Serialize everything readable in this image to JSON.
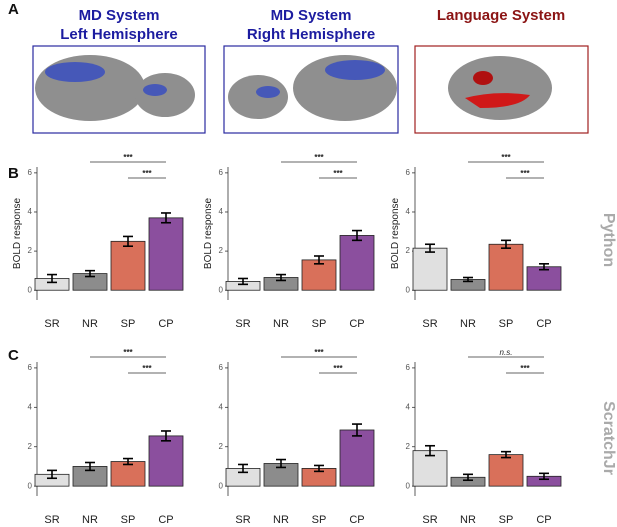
{
  "panel_labels": [
    "A",
    "B",
    "C"
  ],
  "brain_panels": [
    {
      "title": [
        "MD System",
        "Left Hemisphere"
      ],
      "color": "#1c1ca0"
    },
    {
      "title": [
        "MD System",
        "Right Hemisphere"
      ],
      "color": "#1c1ca0"
    },
    {
      "title": [
        "Language System"
      ],
      "color": "#8b1414"
    }
  ],
  "row_labels": [
    "Python",
    "ScratchJr"
  ],
  "chart_data": [
    {
      "type": "bar",
      "categories": [
        "SR",
        "NR",
        "SP",
        "CP"
      ],
      "values": [
        0.6,
        0.85,
        2.5,
        3.7
      ],
      "errors": [
        0.2,
        0.15,
        0.25,
        0.25
      ],
      "colors": [
        "#e0e0e0",
        "#8c8c8c",
        "#d9705a",
        "#8b4f9e"
      ],
      "ylabel": "BOLD response",
      "ylim": [
        -0.5,
        6.3
      ],
      "yticks": [
        0,
        2,
        4,
        6
      ],
      "comparisons": [
        {
          "label": "***",
          "between": [
            1,
            3
          ]
        },
        {
          "label": "***",
          "between": [
            2,
            3
          ]
        }
      ]
    },
    {
      "type": "bar",
      "categories": [
        "SR",
        "NR",
        "SP",
        "CP"
      ],
      "values": [
        0.45,
        0.65,
        1.55,
        2.8
      ],
      "errors": [
        0.15,
        0.15,
        0.2,
        0.25
      ],
      "colors": [
        "#e0e0e0",
        "#8c8c8c",
        "#d9705a",
        "#8b4f9e"
      ],
      "ylabel": "BOLD response",
      "ylim": [
        -0.5,
        6.3
      ],
      "yticks": [
        0,
        2,
        4,
        6
      ],
      "comparisons": [
        {
          "label": "***",
          "between": [
            1,
            3
          ]
        },
        {
          "label": "***",
          "between": [
            2,
            3
          ]
        }
      ]
    },
    {
      "type": "bar",
      "categories": [
        "SR",
        "NR",
        "SP",
        "CP"
      ],
      "values": [
        2.15,
        0.55,
        2.35,
        1.2
      ],
      "errors": [
        0.2,
        0.1,
        0.2,
        0.15
      ],
      "colors": [
        "#e0e0e0",
        "#8c8c8c",
        "#d9705a",
        "#8b4f9e"
      ],
      "ylabel": "BOLD response",
      "ylim": [
        -0.5,
        6.3
      ],
      "yticks": [
        0,
        2,
        4,
        6
      ],
      "comparisons": [
        {
          "label": "***",
          "between": [
            1,
            3
          ]
        },
        {
          "label": "***",
          "between": [
            2,
            3
          ]
        }
      ]
    },
    {
      "type": "bar",
      "categories": [
        "SR",
        "NR",
        "SP",
        "CP"
      ],
      "values": [
        0.6,
        1.0,
        1.25,
        2.55
      ],
      "errors": [
        0.2,
        0.2,
        0.15,
        0.25
      ],
      "colors": [
        "#e0e0e0",
        "#8c8c8c",
        "#d9705a",
        "#8b4f9e"
      ],
      "ylim": [
        -0.5,
        6.3
      ],
      "yticks": [
        0,
        2,
        4,
        6
      ],
      "comparisons": [
        {
          "label": "***",
          "between": [
            1,
            3
          ]
        },
        {
          "label": "***",
          "between": [
            2,
            3
          ]
        }
      ]
    },
    {
      "type": "bar",
      "categories": [
        "SR",
        "NR",
        "SP",
        "CP"
      ],
      "values": [
        0.9,
        1.15,
        0.9,
        2.85
      ],
      "errors": [
        0.2,
        0.2,
        0.15,
        0.3
      ],
      "colors": [
        "#e0e0e0",
        "#8c8c8c",
        "#d9705a",
        "#8b4f9e"
      ],
      "ylim": [
        -0.5,
        6.3
      ],
      "yticks": [
        0,
        2,
        4,
        6
      ],
      "comparisons": [
        {
          "label": "***",
          "between": [
            1,
            3
          ]
        },
        {
          "label": "***",
          "between": [
            2,
            3
          ]
        }
      ]
    },
    {
      "type": "bar",
      "categories": [
        "SR",
        "NR",
        "SP",
        "CP"
      ],
      "values": [
        1.8,
        0.45,
        1.6,
        0.5
      ],
      "errors": [
        0.25,
        0.15,
        0.15,
        0.15
      ],
      "colors": [
        "#e0e0e0",
        "#8c8c8c",
        "#d9705a",
        "#8b4f9e"
      ],
      "ylim": [
        -0.5,
        6.3
      ],
      "yticks": [
        0,
        2,
        4,
        6
      ],
      "comparisons": [
        {
          "label": "n.s.",
          "between": [
            1,
            3
          ]
        },
        {
          "label": "***",
          "between": [
            2,
            3
          ]
        }
      ]
    }
  ]
}
